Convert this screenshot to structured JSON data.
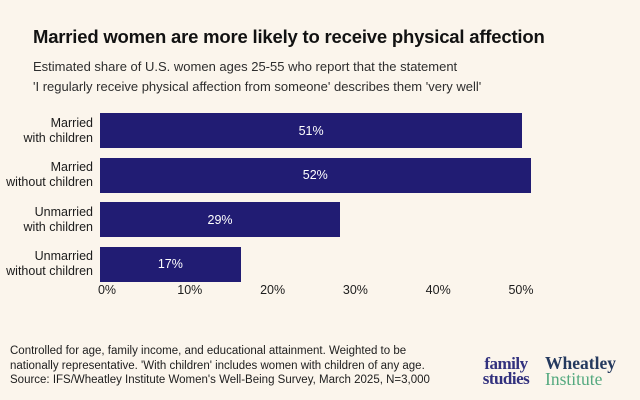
{
  "title": "Married women are more likely to receive physical affection",
  "subtitle": {
    "line1": "Estimated share of U.S. women ages 25-55 who report that the statement",
    "line2": "'I regularly receive physical affection from someone' describes them 'very well'"
  },
  "chart_data": {
    "type": "bar",
    "orientation": "horizontal",
    "title": "Married women are more likely to receive physical affection",
    "categories": [
      "Married with children",
      "Married without children",
      "Unmarried with children",
      "Unmarried without children"
    ],
    "category_lines": [
      [
        "Married",
        "with children"
      ],
      [
        "Married",
        "without children"
      ],
      [
        "Unmarried",
        "with children"
      ],
      [
        "Unmarried",
        "without children"
      ]
    ],
    "values": [
      51,
      52,
      29,
      17
    ],
    "value_labels": [
      "51%",
      "52%",
      "29%",
      "17%"
    ],
    "xticks": [
      "0%",
      "10%",
      "20%",
      "30%",
      "40%",
      "50%"
    ],
    "xtick_values": [
      0,
      10,
      20,
      30,
      40,
      50
    ],
    "xlim": [
      0,
      50
    ],
    "grid": false,
    "legend": false,
    "bar_color": "#211c73",
    "value_label_color": "#ffffff",
    "background_color": "#fbf5ec"
  },
  "footnote": {
    "line1": "Controlled for age, family income, and educational attainment. Weighted to be",
    "line2": "nationally representative. 'With children' includes women with children of any age.",
    "line3": "Source: IFS/Wheatley Institute Women's Well-Being Survey, March 2025, N=3,000"
  },
  "logos": {
    "family_studies": {
      "line1": "family",
      "line2": "studies",
      "color": "#32317e"
    },
    "wheatley_institute": {
      "line1": "Wheatley",
      "line2": "Institute",
      "color_line1": "#24395e",
      "color_line2": "#54a97f"
    }
  }
}
